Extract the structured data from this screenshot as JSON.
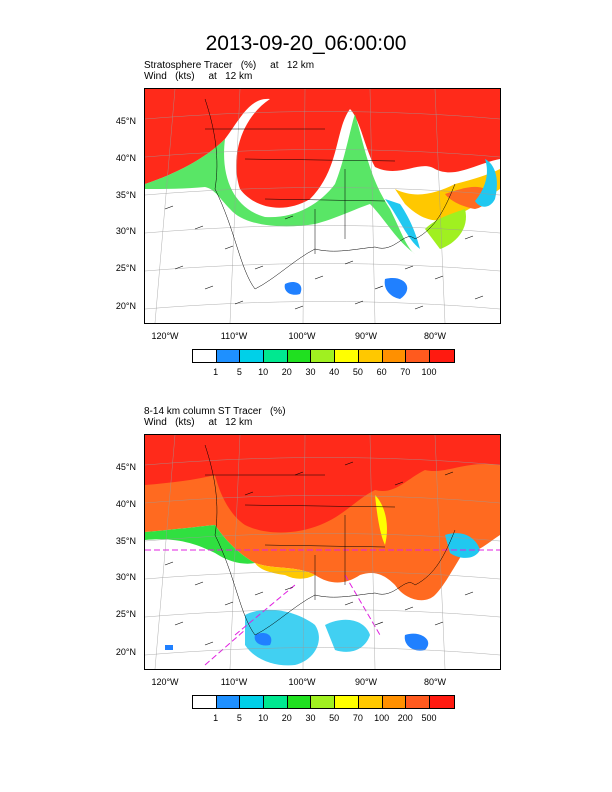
{
  "title": "2013-09-20_06:00:00",
  "panels": [
    {
      "line1": "Stratosphere Tracer   (%)     at   12 km",
      "line2": "Wind   (kts)     at   12 km",
      "lat_labels": [
        "45°N",
        "40°N",
        "35°N",
        "30°N",
        "25°N",
        "20°N"
      ],
      "lon_labels": [
        "120°W",
        "110°W",
        "100°W",
        "90°W",
        "80°W"
      ],
      "legend_ticks": [
        "1",
        "5",
        "10",
        "20",
        "30",
        "40",
        "50",
        "60",
        "70",
        "100"
      ]
    },
    {
      "line1": "8-14 km column ST Tracer   (%)",
      "line2": "Wind   (kts)     at   12 km",
      "lat_labels": [
        "45°N",
        "40°N",
        "35°N",
        "30°N",
        "25°N",
        "20°N"
      ],
      "lon_labels": [
        "120°W",
        "110°W",
        "100°W",
        "90°W",
        "80°W"
      ],
      "legend_ticks": [
        "1",
        "5",
        "10",
        "20",
        "30",
        "50",
        "70",
        "100",
        "200",
        "500"
      ]
    }
  ],
  "colors": {
    "legend": [
      "#ffffff",
      "#1e90ff",
      "#00d0e8",
      "#00e890",
      "#20e020",
      "#a0f020",
      "#ffff00",
      "#ffc800",
      "#ff9000",
      "#ff5a1e",
      "#ff1a10"
    ],
    "tracer_high": "#ff2a1a",
    "tracer_orange": "#ff6a20",
    "tracer_green": "#30e040",
    "tracer_cyan": "#20c8f0",
    "tracer_blue": "#2080ff"
  }
}
